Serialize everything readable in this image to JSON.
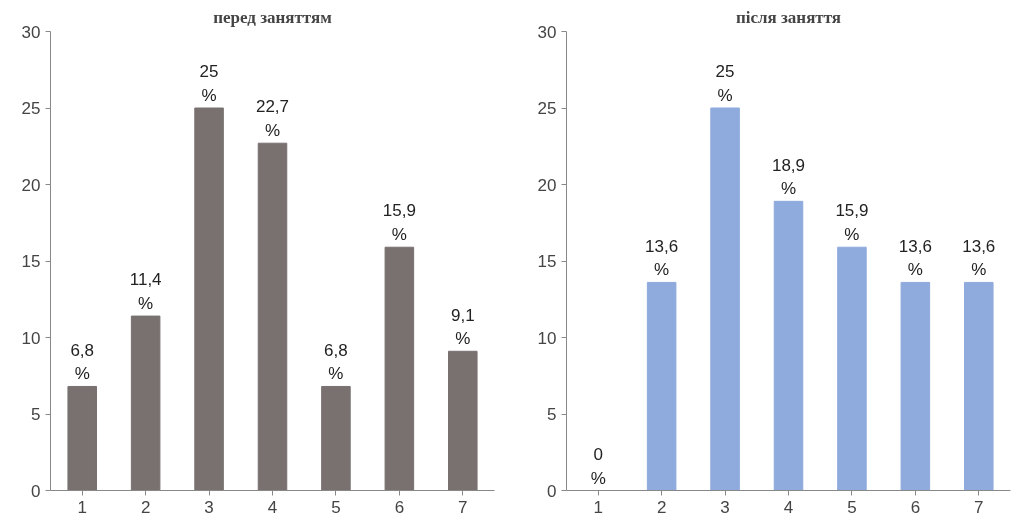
{
  "chart_data": [
    {
      "type": "bar",
      "title": "перед заняттям",
      "categories": [
        "1",
        "2",
        "3",
        "4",
        "5",
        "6",
        "7"
      ],
      "values": [
        6.8,
        11.4,
        25,
        22.7,
        6.8,
        15.9,
        9.1
      ],
      "color": "#787170",
      "value_labels": [
        "6,8 %",
        "11,4 %",
        "25 %",
        "22,7 %",
        "6,8 %",
        "15,9 %",
        "9,1 %"
      ],
      "ylim": [
        0,
        30
      ],
      "yticks": [
        0,
        5,
        10,
        15,
        20,
        25,
        30
      ],
      "grid": false
    },
    {
      "type": "bar",
      "title": "після заняття",
      "categories": [
        "1",
        "2",
        "3",
        "4",
        "5",
        "6",
        "7"
      ],
      "values": [
        0,
        13.6,
        25,
        18.9,
        15.9,
        13.6,
        13.6
      ],
      "color": "#8faadc",
      "value_labels": [
        "0 %",
        "13,6 %",
        "25 %",
        "18,9 %",
        "15,9 %",
        "13,6 %",
        "13,6 %"
      ],
      "ylim": [
        0,
        30
      ],
      "yticks": [
        0,
        5,
        10,
        15,
        20,
        25,
        30
      ],
      "grid": false
    }
  ]
}
